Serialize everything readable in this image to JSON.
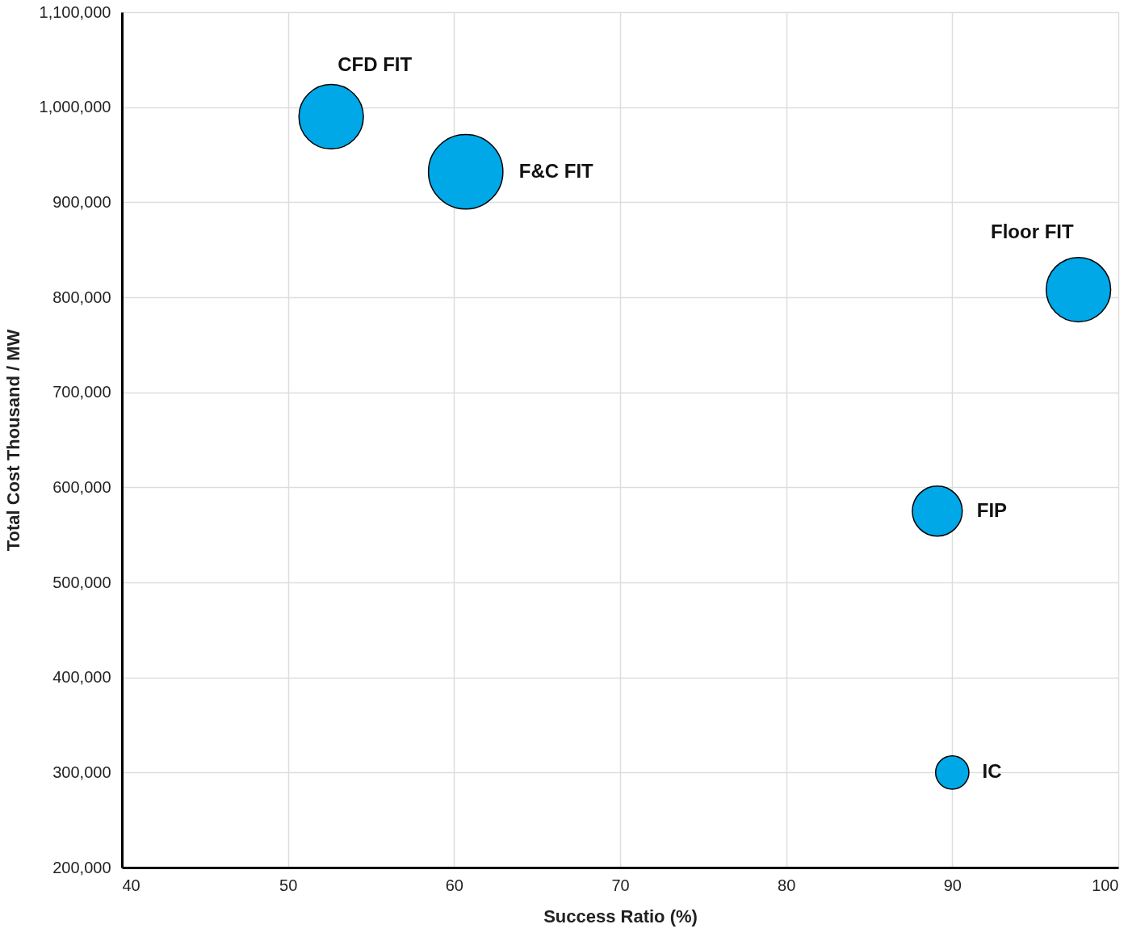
{
  "chart_data": {
    "type": "bubble",
    "xlabel": "Success Ratio (%)",
    "ylabel": "Total Cost Thousand / MW",
    "xlim": [
      40,
      100
    ],
    "xticks": [
      40,
      50,
      60,
      70,
      80,
      90,
      100
    ],
    "ylim": [
      200000,
      1100000
    ],
    "yticks": [
      {
        "value": 200000,
        "label": "200,000"
      },
      {
        "value": 300000,
        "label": "300,000"
      },
      {
        "value": 400000,
        "label": "400,000"
      },
      {
        "value": 500000,
        "label": "500,000"
      },
      {
        "value": 600000,
        "label": "600,000"
      },
      {
        "value": 700000,
        "label": "700,000"
      },
      {
        "value": 800000,
        "label": "800,000"
      },
      {
        "value": 900000,
        "label": "900,000"
      },
      {
        "value": 1000000,
        "label": "1,000,000"
      },
      {
        "value": 1100000,
        "label": "1,100,000"
      }
    ],
    "grid": true,
    "series": [
      {
        "name": "CFD FIT",
        "color": "#00a8e8",
        "x": [
          52.6
        ],
        "values": [
          990000
        ],
        "sizes": [
          0.75
        ]
      },
      {
        "name": "F&C FIT",
        "color": "#00a8e8",
        "x": [
          60.7
        ],
        "values": [
          932000
        ],
        "sizes": [
          1
        ]
      },
      {
        "name": "Floor FIT",
        "color": "#00a8e8",
        "x": [
          97.6
        ],
        "values": [
          808000
        ],
        "sizes": [
          0.75
        ]
      },
      {
        "name": "FIP",
        "color": "#00a8e8",
        "x": [
          89.1
        ],
        "values": [
          575000
        ],
        "sizes": [
          0.45
        ]
      },
      {
        "name": "IC",
        "color": "#00a8e8",
        "x": [
          90.0
        ],
        "values": [
          300000
        ],
        "sizes": [
          0.2
        ]
      }
    ]
  }
}
